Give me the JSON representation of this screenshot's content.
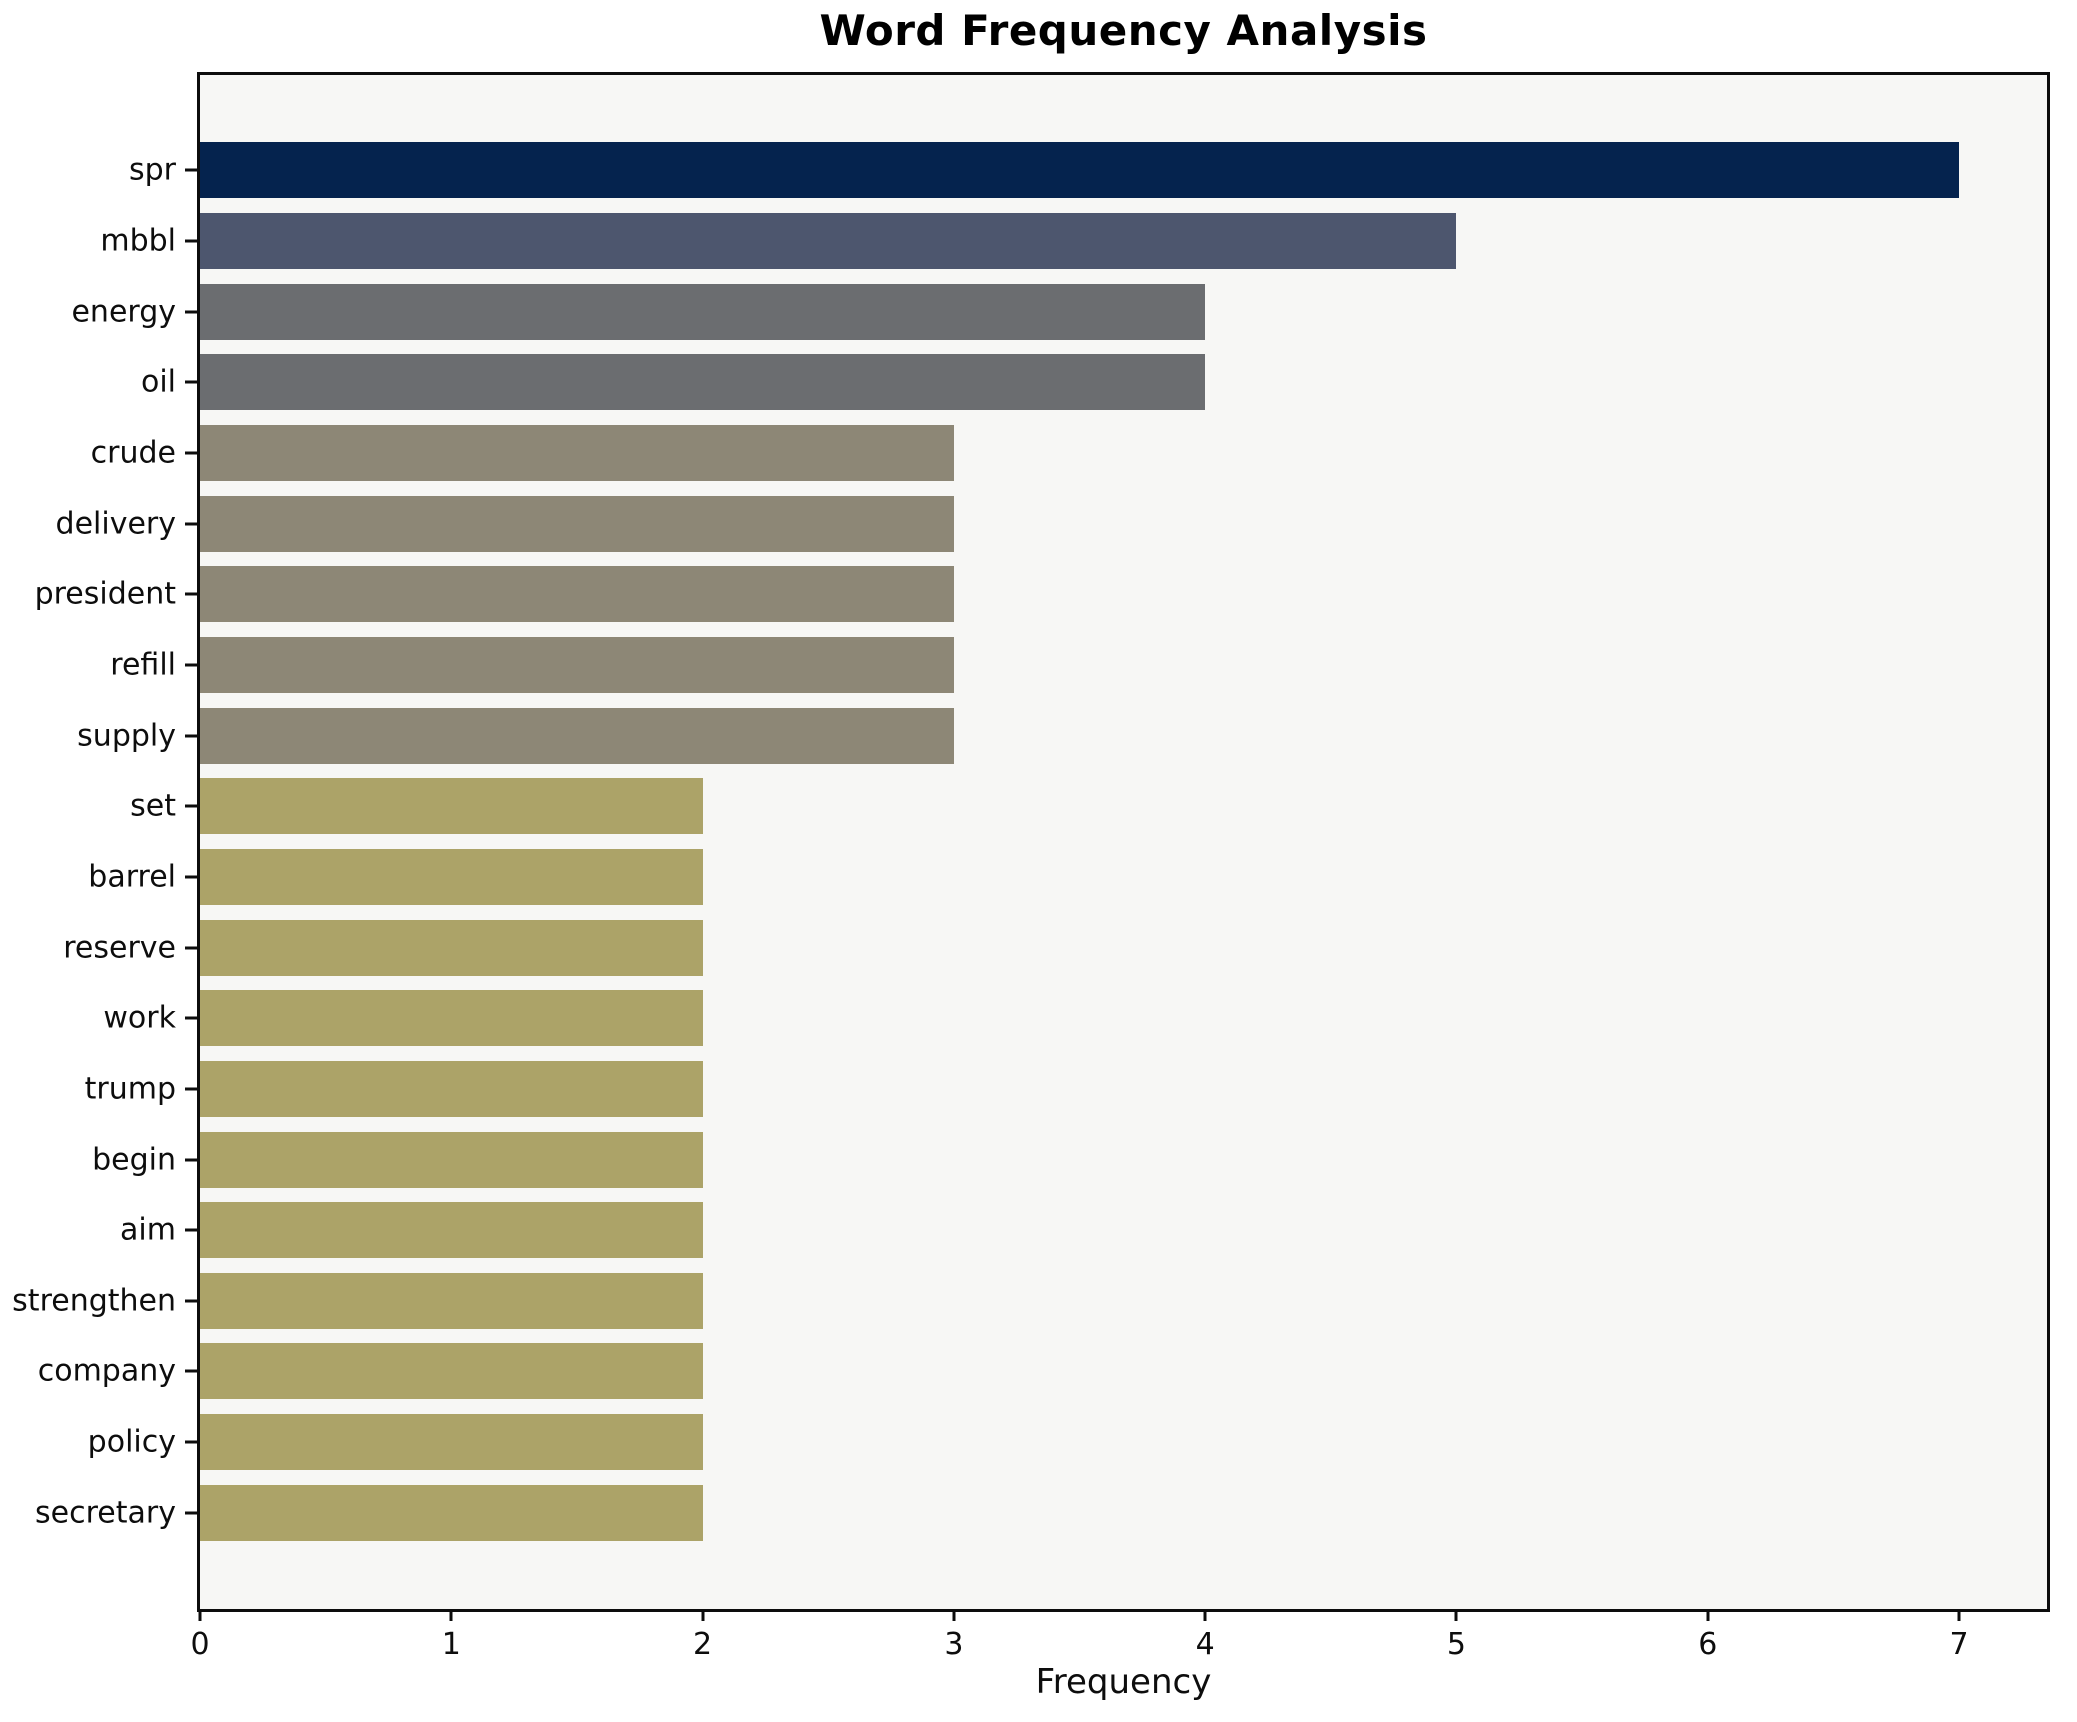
{
  "chart_data": {
    "type": "bar",
    "orientation": "horizontal",
    "title": "Word Frequency Analysis",
    "xlabel": "Frequency",
    "ylabel": "",
    "categories": [
      "spr",
      "mbbl",
      "energy",
      "oil",
      "crude",
      "delivery",
      "president",
      "refill",
      "supply",
      "set",
      "barrel",
      "reserve",
      "work",
      "trump",
      "begin",
      "aim",
      "strengthen",
      "company",
      "policy",
      "secretary"
    ],
    "values": [
      7,
      5,
      4,
      4,
      3,
      3,
      3,
      3,
      3,
      2,
      2,
      2,
      2,
      2,
      2,
      2,
      2,
      2,
      2,
      2
    ],
    "bar_colors": [
      "#05234e",
      "#4d566e",
      "#6b6d70",
      "#6b6d70",
      "#8d8776",
      "#8d8776",
      "#8d8776",
      "#8d8776",
      "#8d8776",
      "#aca368",
      "#aca368",
      "#aca368",
      "#aca368",
      "#aca368",
      "#aca368",
      "#aca368",
      "#aca368",
      "#aca368",
      "#aca368",
      "#aca368"
    ],
    "xlim": [
      0,
      7.35
    ],
    "xticks": [
      0,
      1,
      2,
      3,
      4,
      5,
      6,
      7
    ],
    "grid": false,
    "legend": null,
    "style": {
      "plot_background": "#f7f7f5",
      "figure_background": "#ffffff",
      "spine_color": "#0d0d0d",
      "text_color": "#000000"
    }
  }
}
